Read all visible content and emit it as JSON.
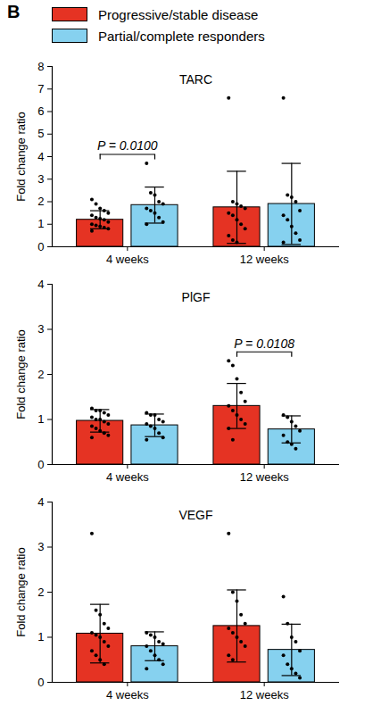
{
  "panel_label": "B",
  "chart_data": [
    {
      "type": "bar",
      "title": "TARC",
      "ylabel": "Fold change ratio",
      "categories": [
        "4 weeks",
        "12 weeks"
      ],
      "ylim": [
        0,
        8
      ],
      "yticks": [
        0,
        1,
        2,
        3,
        4,
        5,
        6,
        7,
        8
      ],
      "legend": "top",
      "series": [
        {
          "name": "Progressive/stable disease",
          "color": "#e53323",
          "values": [
            1.2,
            1.75
          ],
          "error": [
            0.4,
            1.6
          ],
          "points": [
            [
              2.1,
              1.9,
              1.7,
              1.6,
              1.5,
              1.4,
              1.3,
              1.25,
              1.2,
              1.1,
              1.0,
              0.95,
              0.9,
              0.85,
              0.8,
              0.7
            ],
            [
              6.6,
              2.0,
              1.9,
              1.8,
              1.7,
              1.5,
              1.4,
              1.2,
              1.0,
              0.8,
              0.5,
              0.3,
              0.2
            ]
          ]
        },
        {
          "name": "Partial/complete responders",
          "color": "#86d1ef",
          "values": [
            1.85,
            1.9
          ],
          "error": [
            0.8,
            1.8
          ],
          "points": [
            [
              3.7,
              2.4,
              2.3,
              2.0,
              1.9,
              1.7,
              1.6,
              1.5,
              1.3,
              1.1,
              1.0
            ],
            [
              6.6,
              2.3,
              2.2,
              2.0,
              1.6,
              1.4,
              1.2,
              0.9,
              0.6,
              0.3,
              0.2
            ]
          ]
        }
      ],
      "annotations": [
        {
          "text": "P = 0.0100",
          "category": "4 weeks"
        }
      ]
    },
    {
      "type": "bar",
      "title": "PlGF",
      "ylabel": "Fold change ratio",
      "categories": [
        "4 weeks",
        "12 weeks"
      ],
      "ylim": [
        0,
        4
      ],
      "yticks": [
        0,
        1,
        2,
        3,
        4
      ],
      "series": [
        {
          "name": "Progressive/stable disease",
          "color": "#e53323",
          "values": [
            0.97,
            1.3
          ],
          "error": [
            0.25,
            0.5
          ],
          "points": [
            [
              1.25,
              1.2,
              1.2,
              1.15,
              1.1,
              1.05,
              1.0,
              1.0,
              0.95,
              0.9,
              0.85,
              0.8,
              0.75,
              0.7,
              0.65,
              0.6
            ],
            [
              2.3,
              2.2,
              1.9,
              1.6,
              1.4,
              1.3,
              1.2,
              1.1,
              1.0,
              0.9,
              0.8,
              0.55
            ]
          ]
        },
        {
          "name": "Partial/complete responders",
          "color": "#86d1ef",
          "values": [
            0.87,
            0.78
          ],
          "error": [
            0.25,
            0.3
          ],
          "points": [
            [
              1.15,
              1.1,
              1.1,
              1.0,
              0.95,
              0.9,
              0.85,
              0.8,
              0.7,
              0.6,
              0.55
            ],
            [
              1.1,
              1.05,
              0.95,
              0.85,
              0.75,
              0.65,
              0.5,
              0.45,
              0.35
            ]
          ]
        }
      ],
      "annotations": [
        {
          "text": "P = 0.0108",
          "category": "12 weeks"
        }
      ]
    },
    {
      "type": "bar",
      "title": "VEGF",
      "ylabel": "Fold change ratio",
      "categories": [
        "4 weeks",
        "12 weeks"
      ],
      "ylim": [
        0,
        4
      ],
      "yticks": [
        0,
        1,
        2,
        3,
        4
      ],
      "series": [
        {
          "name": "Progressive/stable disease",
          "color": "#e53323",
          "values": [
            1.08,
            1.25
          ],
          "error": [
            0.65,
            0.8
          ],
          "points": [
            [
              3.3,
              1.6,
              1.5,
              1.3,
              1.2,
              1.1,
              1.05,
              1.0,
              0.9,
              0.8,
              0.7,
              0.6,
              0.5,
              0.4
            ],
            [
              3.3,
              2.0,
              1.8,
              1.5,
              1.3,
              1.2,
              1.1,
              1.0,
              0.9,
              0.8,
              0.6,
              0.5
            ]
          ]
        },
        {
          "name": "Partial/complete responders",
          "color": "#86d1ef",
          "values": [
            0.8,
            0.72
          ],
          "error": [
            0.32,
            0.57
          ],
          "points": [
            [
              1.1,
              1.05,
              1.0,
              0.9,
              0.85,
              0.8,
              0.7,
              0.6,
              0.5,
              0.4,
              0.3
            ],
            [
              1.9,
              1.3,
              1.0,
              0.9,
              0.7,
              0.6,
              0.4,
              0.3,
              0.2,
              0.1
            ]
          ]
        }
      ],
      "annotations": []
    }
  ]
}
